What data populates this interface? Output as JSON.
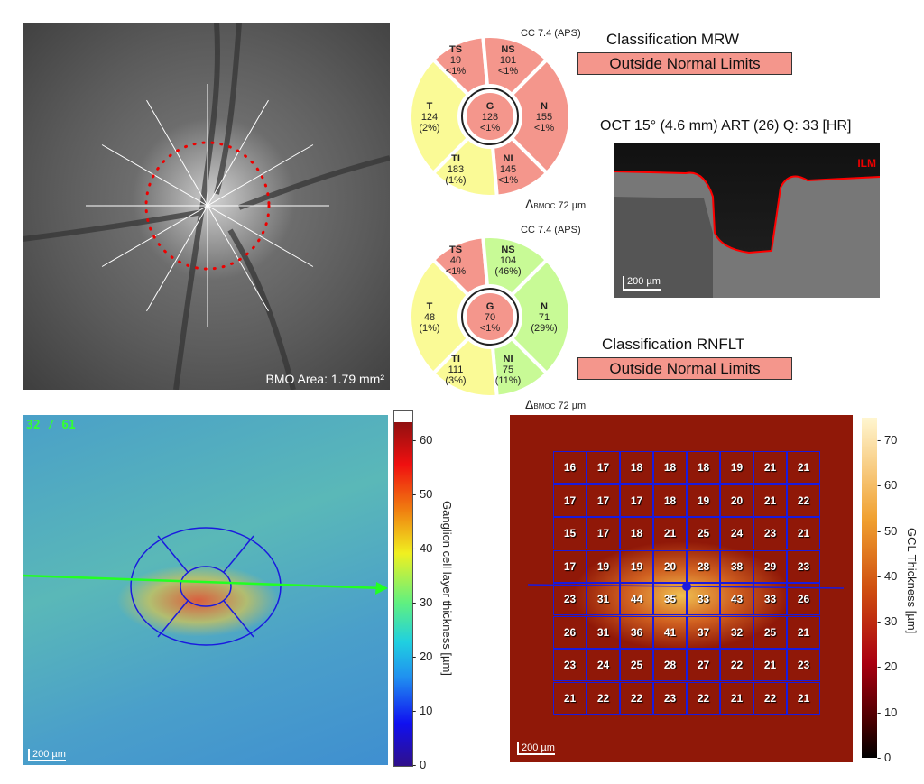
{
  "fundus": {
    "bmo_area": "BMO Area: 1.79 mm²"
  },
  "mrw": {
    "cc": "CC 7.4 (APS)",
    "classification_title": "Classification MRW",
    "classification": "Outside Normal Limits",
    "delta": "Δ",
    "delta_sub": "BMOC",
    "delta_value": "72 µm",
    "sectors": [
      {
        "id": "G",
        "value": "128",
        "pct": "<1%",
        "status": "outside"
      },
      {
        "id": "TS",
        "value": "19",
        "pct": "<1%",
        "status": "outside"
      },
      {
        "id": "NS",
        "value": "101",
        "pct": "<1%",
        "status": "outside"
      },
      {
        "id": "N",
        "value": "155",
        "pct": "<1%",
        "status": "outside"
      },
      {
        "id": "NI",
        "value": "145",
        "pct": "<1%",
        "status": "outside"
      },
      {
        "id": "TI",
        "value": "183",
        "pct": "(1%)",
        "status": "borderline"
      },
      {
        "id": "T",
        "value": "124",
        "pct": "(2%)",
        "status": "borderline"
      }
    ]
  },
  "rnflt": {
    "cc": "CC 7.4 (APS)",
    "classification_title": "Classification RNFLT",
    "classification": "Outside Normal Limits",
    "delta": "Δ",
    "delta_sub": "BMOC",
    "delta_value": "72 µm",
    "sectors": [
      {
        "id": "G",
        "value": "70",
        "pct": "<1%",
        "status": "outside"
      },
      {
        "id": "TS",
        "value": "40",
        "pct": "<1%",
        "status": "outside"
      },
      {
        "id": "NS",
        "value": "104",
        "pct": "(46%)",
        "status": "normal"
      },
      {
        "id": "N",
        "value": "71",
        "pct": "(29%)",
        "status": "normal"
      },
      {
        "id": "NI",
        "value": "75",
        "pct": "(11%)",
        "status": "normal"
      },
      {
        "id": "TI",
        "value": "111",
        "pct": "(3%)",
        "status": "borderline"
      },
      {
        "id": "T",
        "value": "48",
        "pct": "(1%)",
        "status": "borderline"
      }
    ]
  },
  "colors": {
    "outside": "#f4968c",
    "borderline": "#fafa96",
    "normal": "#c8fa96"
  },
  "oct": {
    "title": "OCT 15° (4.6 mm) ART (26) Q: 33 [HR]",
    "ilm": "ILM",
    "scale": "200 µm"
  },
  "gcl_map": {
    "counter": "32 / 61",
    "scale": "200 µm",
    "colorbar_label": "Ganglion cell layer thickness [µm]",
    "ticks": [
      "0",
      "10",
      "20",
      "30",
      "40",
      "50",
      "60"
    ]
  },
  "grid_map": {
    "scale": "200 µm",
    "colorbar_label": "GCL  Thickness [µm]",
    "ticks": [
      "0",
      "10",
      "20",
      "30",
      "40",
      "50",
      "60",
      "70"
    ],
    "values": [
      [
        16,
        17,
        18,
        18,
        18,
        19,
        21,
        21
      ],
      [
        17,
        17,
        17,
        18,
        19,
        20,
        21,
        22
      ],
      [
        15,
        17,
        18,
        21,
        25,
        24,
        23,
        21
      ],
      [
        17,
        19,
        19,
        20,
        28,
        38,
        29,
        23
      ],
      [
        23,
        31,
        44,
        35,
        33,
        43,
        33,
        26
      ],
      [
        26,
        31,
        36,
        41,
        37,
        32,
        25,
        21
      ],
      [
        23,
        24,
        25,
        28,
        27,
        22,
        21,
        23
      ],
      [
        21,
        22,
        22,
        23,
        22,
        21,
        22,
        21
      ]
    ]
  }
}
